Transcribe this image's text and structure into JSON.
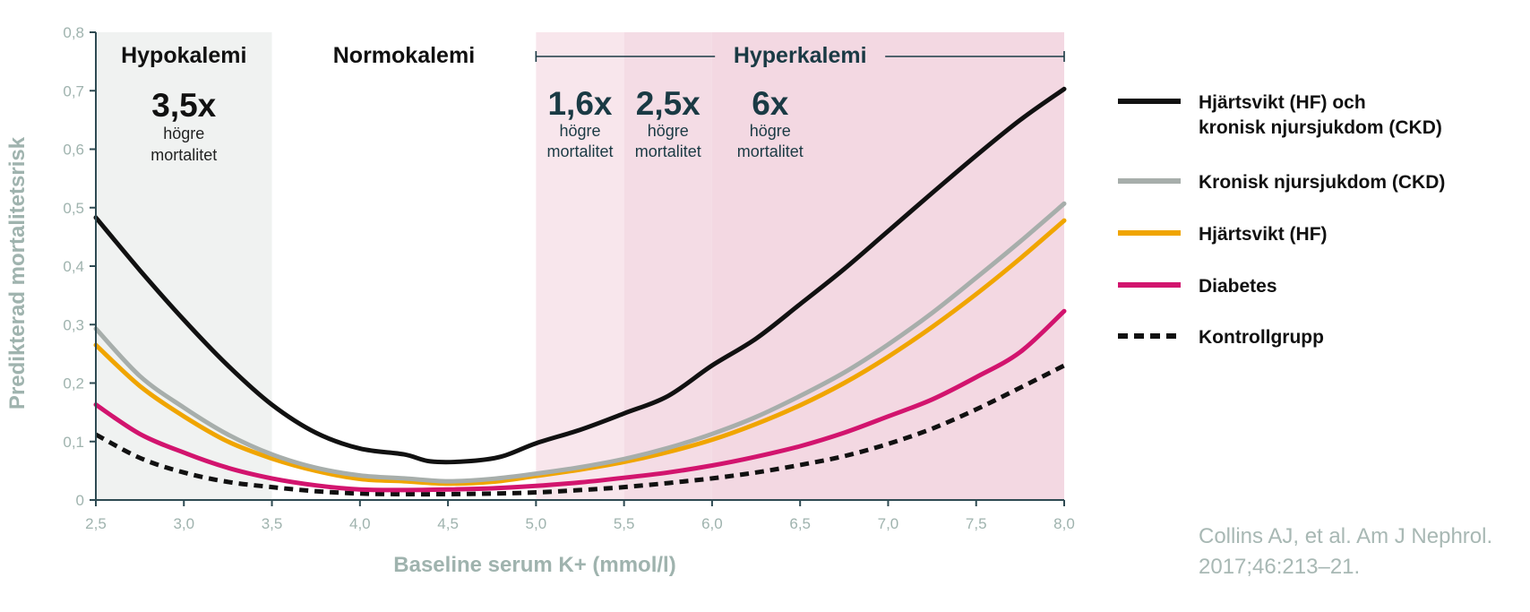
{
  "chart_data": {
    "type": "line",
    "xlabel": "Baseline serum K+ (mmol/l)",
    "ylabel": "Predikterad mortalitetsrisk",
    "xlim": [
      2.5,
      8.0
    ],
    "ylim": [
      0,
      0.8
    ],
    "x_ticks": [
      "2,5",
      "3,0",
      "3,5",
      "4,0",
      "4,5",
      "5,0",
      "5,5",
      "6,0",
      "6,5",
      "7,0",
      "7,5",
      "8,0"
    ],
    "y_ticks": [
      "0",
      "0,1",
      "0,2",
      "0,3",
      "0,4",
      "0,5",
      "0,6",
      "0,7",
      "0,8"
    ],
    "zones": [
      {
        "name": "Hypokalemi",
        "from": 2.5,
        "to": 3.5,
        "color": "#f0f2f1"
      },
      {
        "name": "Normokalemi",
        "from": 3.5,
        "to": 5.0,
        "color": "#ffffff"
      },
      {
        "name": "Hyperkalemi",
        "from": 5.0,
        "to": 8.0,
        "color": "#f8e6ec"
      }
    ],
    "hyper_bands": [
      {
        "from": 5.0,
        "to": 5.5,
        "color": "#f8e6ec"
      },
      {
        "from": 5.5,
        "to": 6.0,
        "color": "#f4dce5"
      },
      {
        "from": 6.0,
        "to": 8.0,
        "color": "#f3d8e2"
      }
    ],
    "annotations": [
      {
        "big": "3,5x",
        "line1": "högre",
        "line2": "mortalitet",
        "x": 3.0,
        "style": "dark"
      },
      {
        "big": "1,6x",
        "line1": "högre",
        "line2": "mortalitet",
        "x": 5.25,
        "style": "teal"
      },
      {
        "big": "2,5x",
        "line1": "högre",
        "line2": "mortalitet",
        "x": 5.75,
        "style": "teal"
      },
      {
        "big": "6x",
        "line1": "högre",
        "line2": "mortalitet",
        "x": 6.33,
        "style": "teal"
      }
    ],
    "series": [
      {
        "name": "Hjärtsvikt (HF) och kronisk njursjukdom (CKD)",
        "legend_lines": [
          "Hjärtsvikt (HF) och",
          "kronisk njursjukdom (CKD)"
        ],
        "color": "#111111",
        "dash": false,
        "x": [
          2.5,
          2.75,
          3.0,
          3.25,
          3.5,
          3.75,
          4.0,
          4.25,
          4.4,
          4.6,
          4.8,
          5.0,
          5.25,
          5.5,
          5.75,
          6.0,
          6.25,
          6.5,
          6.75,
          7.0,
          7.25,
          7.5,
          7.75,
          8.0
        ],
        "y": [
          0.483,
          0.393,
          0.308,
          0.23,
          0.163,
          0.115,
          0.088,
          0.078,
          0.066,
          0.066,
          0.074,
          0.097,
          0.12,
          0.148,
          0.178,
          0.23,
          0.276,
          0.335,
          0.395,
          0.46,
          0.525,
          0.589,
          0.65,
          0.703
        ]
      },
      {
        "name": "Kronisk njursjukdom (CKD)",
        "legend_lines": [
          "Kronisk njursjukdom (CKD)"
        ],
        "color": "#a7aeab",
        "dash": false,
        "x": [
          2.5,
          2.75,
          3.0,
          3.25,
          3.5,
          3.75,
          4.0,
          4.25,
          4.5,
          4.75,
          5.0,
          5.25,
          5.5,
          5.75,
          6.0,
          6.25,
          6.5,
          6.75,
          7.0,
          7.25,
          7.5,
          7.75,
          8.0
        ],
        "y": [
          0.293,
          0.212,
          0.158,
          0.112,
          0.078,
          0.055,
          0.042,
          0.037,
          0.032,
          0.036,
          0.045,
          0.056,
          0.07,
          0.089,
          0.113,
          0.142,
          0.178,
          0.218,
          0.266,
          0.32,
          0.38,
          0.442,
          0.507
        ]
      },
      {
        "name": "Hjärtsvikt (HF)",
        "legend_lines": [
          "Hjärtsvikt (HF)"
        ],
        "color": "#f0a500",
        "dash": false,
        "x": [
          2.5,
          2.75,
          3.0,
          3.25,
          3.5,
          3.75,
          4.0,
          4.25,
          4.5,
          4.75,
          5.0,
          5.25,
          5.5,
          5.75,
          6.0,
          6.25,
          6.5,
          6.75,
          7.0,
          7.25,
          7.5,
          7.75,
          8.0
        ],
        "y": [
          0.265,
          0.195,
          0.143,
          0.1,
          0.071,
          0.05,
          0.036,
          0.032,
          0.028,
          0.031,
          0.041,
          0.052,
          0.065,
          0.082,
          0.103,
          0.13,
          0.162,
          0.2,
          0.245,
          0.296,
          0.352,
          0.413,
          0.478
        ]
      },
      {
        "name": "Diabetes",
        "legend_lines": [
          "Diabetes"
        ],
        "color": "#d2146e",
        "dash": false,
        "x": [
          2.5,
          2.75,
          3.0,
          3.25,
          3.5,
          3.75,
          4.0,
          4.25,
          4.5,
          4.75,
          5.0,
          5.25,
          5.5,
          5.75,
          6.0,
          6.25,
          6.5,
          6.75,
          7.0,
          7.25,
          7.5,
          7.75,
          8.0
        ],
        "y": [
          0.163,
          0.113,
          0.081,
          0.055,
          0.037,
          0.025,
          0.018,
          0.017,
          0.018,
          0.02,
          0.024,
          0.03,
          0.038,
          0.047,
          0.059,
          0.074,
          0.092,
          0.115,
          0.143,
          0.172,
          0.21,
          0.253,
          0.323
        ]
      },
      {
        "name": "Kontrollgrupp",
        "legend_lines": [
          "Kontrollgrupp"
        ],
        "color": "#111111",
        "dash": true,
        "x": [
          2.5,
          2.75,
          3.0,
          3.25,
          3.5,
          3.75,
          4.0,
          4.25,
          4.5,
          4.75,
          5.0,
          5.25,
          5.5,
          5.75,
          6.0,
          6.25,
          6.5,
          6.75,
          7.0,
          7.25,
          7.5,
          7.75,
          8.0
        ],
        "y": [
          0.112,
          0.072,
          0.047,
          0.031,
          0.022,
          0.015,
          0.011,
          0.01,
          0.01,
          0.011,
          0.013,
          0.017,
          0.022,
          0.029,
          0.037,
          0.047,
          0.06,
          0.075,
          0.096,
          0.122,
          0.155,
          0.192,
          0.23
        ]
      }
    ]
  },
  "source": {
    "line1": "Collins AJ, et al. Am J Nephrol.",
    "line2": "2017;46:213–21."
  }
}
